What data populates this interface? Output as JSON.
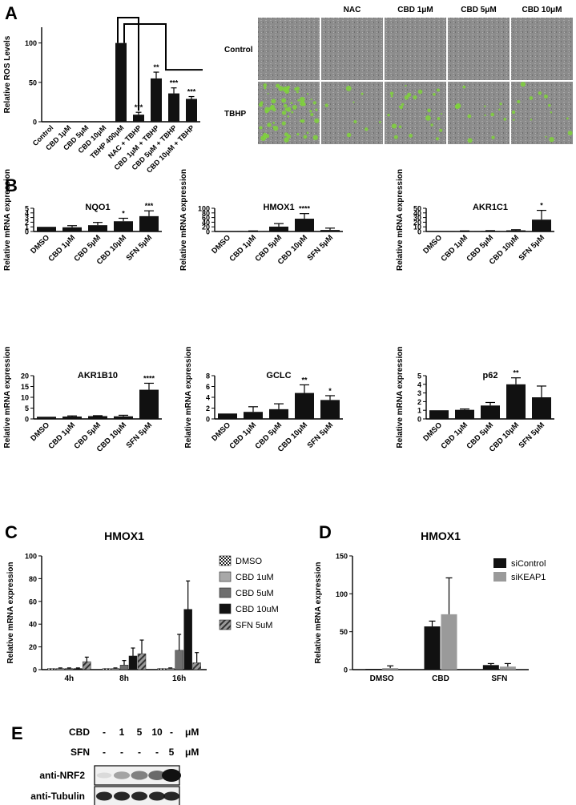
{
  "panels": {
    "a": "A",
    "b": "B",
    "c": "C",
    "d": "D",
    "e": "E"
  },
  "chart_data": [
    {
      "id": "a",
      "type": "bar",
      "ylabel": "Relative ROS Levels",
      "ylim": [
        0,
        120
      ],
      "yticks": [
        0,
        50,
        100
      ],
      "categories": [
        "Control",
        "CBD 1μM",
        "CBD 5μM",
        "CBD 10μM",
        "TBHP 400μM",
        "NAC + TBHP",
        "CBD 1μM + TBHP",
        "CBD 5μM + TBHP",
        "CBD 10μM + TBHP"
      ],
      "values": [
        0,
        0,
        0,
        0,
        100,
        9,
        55,
        36,
        29
      ],
      "errors": [
        0,
        0,
        0,
        0,
        0,
        3,
        8,
        7,
        3
      ],
      "stars": [
        "",
        "",
        "",
        "",
        "",
        "***",
        "**",
        "***",
        "***"
      ]
    },
    {
      "id": "b1",
      "type": "bar",
      "title": "NQO1",
      "ylabel": "Relative mRNA expression",
      "ylim": [
        0,
        5
      ],
      "yticks": [
        0,
        1,
        2,
        3,
        4,
        5
      ],
      "categories": [
        "DMSO",
        "CBD 1μM",
        "CBD 5μM",
        "CBD 10μM",
        "SFN 5μM"
      ],
      "values": [
        1,
        0.9,
        1.35,
        2.2,
        3.3
      ],
      "errors": [
        0,
        0.35,
        0.6,
        0.65,
        1.15
      ],
      "stars": [
        "",
        "",
        "",
        "*",
        "***"
      ]
    },
    {
      "id": "b2",
      "type": "bar",
      "title": "HMOX1",
      "ylabel": "Relative mRNA expression",
      "ylim": [
        0,
        100
      ],
      "yticks": [
        0,
        20,
        40,
        60,
        80,
        100
      ],
      "categories": [
        "DMSO",
        "CBD 1μM",
        "CBD 5μM",
        "CBD 10μM",
        "SFN 5μM"
      ],
      "values": [
        1,
        1.5,
        21,
        55,
        6.5
      ],
      "errors": [
        0,
        1,
        13,
        22,
        8
      ],
      "stars": [
        "",
        "",
        "",
        "****",
        ""
      ]
    },
    {
      "id": "b3",
      "type": "bar",
      "title": "AKR1C1",
      "ylabel": "Relative mRNA expression",
      "ylim": [
        0,
        50
      ],
      "yticks": [
        0,
        10,
        20,
        30,
        40,
        50
      ],
      "categories": [
        "DMSO",
        "CBD 1μM",
        "CBD 5μM",
        "CBD 10μM",
        "SFN 5μM"
      ],
      "values": [
        1,
        0.9,
        1.2,
        2.5,
        25.5
      ],
      "errors": [
        0,
        0.4,
        0.6,
        1.3,
        20
      ],
      "stars": [
        "",
        "",
        "",
        "",
        "*"
      ]
    },
    {
      "id": "b4",
      "type": "bar",
      "title": "AKR1B10",
      "ylabel": "Relative mRNA expression",
      "ylim": [
        0,
        20
      ],
      "yticks": [
        0,
        5,
        10,
        15,
        20
      ],
      "categories": [
        "DMSO",
        "CBD 1μM",
        "CBD 5μM",
        "CBD 10μM",
        "SFN 5μM"
      ],
      "values": [
        1,
        1.1,
        1.3,
        1.2,
        13.5
      ],
      "errors": [
        0,
        0.3,
        0.2,
        0.5,
        3
      ],
      "stars": [
        "",
        "",
        "",
        "",
        "****"
      ]
    },
    {
      "id": "b5",
      "type": "bar",
      "title": "GCLC",
      "ylabel": "Relative mRNA expression",
      "ylim": [
        0,
        8
      ],
      "yticks": [
        0,
        2,
        4,
        6,
        8
      ],
      "categories": [
        "DMSO",
        "CBD 1μM",
        "CBD 5μM",
        "CBD 10μM",
        "SFN 5μM"
      ],
      "values": [
        1,
        1.3,
        1.8,
        4.8,
        3.5
      ],
      "errors": [
        0,
        0.95,
        1,
        1.5,
        0.8
      ],
      "stars": [
        "",
        "",
        "",
        "**",
        "*"
      ]
    },
    {
      "id": "b6",
      "type": "bar",
      "title": "p62",
      "ylabel": "Relative mRNA expression",
      "ylim": [
        0,
        5
      ],
      "yticks": [
        0,
        1,
        2,
        3,
        4,
        5
      ],
      "categories": [
        "DMSO",
        "CBD 1μM",
        "CBD 5μM",
        "CBD 10μM",
        "SFN 5μM"
      ],
      "values": [
        1,
        1.05,
        1.55,
        4,
        2.5
      ],
      "errors": [
        0,
        0.1,
        0.35,
        0.75,
        1.3
      ],
      "stars": [
        "",
        "",
        "",
        "**",
        ""
      ]
    },
    {
      "id": "c",
      "type": "bar",
      "title": "HMOX1",
      "ylabel": "Relative mRNA expression",
      "ylim": [
        0,
        100
      ],
      "yticks": [
        0,
        20,
        40,
        60,
        80,
        100
      ],
      "categories": [
        "4h",
        "8h",
        "16h"
      ],
      "series": [
        {
          "name": "DMSO",
          "values": [
            1,
            1,
            1
          ],
          "errors": [
            0,
            0,
            0
          ]
        },
        {
          "name": "CBD 1uM",
          "values": [
            1,
            1,
            1
          ],
          "errors": [
            0.5,
            0.5,
            0.5
          ]
        },
        {
          "name": "CBD 5uM",
          "values": [
            1,
            4,
            17
          ],
          "errors": [
            0.5,
            4,
            14
          ]
        },
        {
          "name": "CBD 10uM",
          "values": [
            1,
            12,
            53
          ],
          "errors": [
            0.5,
            7,
            25
          ]
        },
        {
          "name": "SFN 5uM",
          "values": [
            7,
            14,
            6
          ],
          "errors": [
            4,
            12,
            9
          ]
        }
      ],
      "legend": "right"
    },
    {
      "id": "d",
      "type": "bar",
      "title": "HMOX1",
      "ylabel": "Relative mRNA expression",
      "ylim": [
        0,
        150
      ],
      "yticks": [
        0,
        50,
        100,
        150
      ],
      "categories": [
        "DMSO",
        "CBD",
        "SFN"
      ],
      "series": [
        {
          "name": "siControl",
          "values": [
            1,
            57,
            6
          ],
          "errors": [
            0,
            7,
            2
          ]
        },
        {
          "name": "siKEAP1",
          "values": [
            2,
            73,
            4
          ],
          "errors": [
            3,
            48,
            4
          ]
        }
      ],
      "legend": "top-right"
    }
  ],
  "micrograph": {
    "columns": [
      "NAC",
      "CBD 1μM",
      "CBD 5μM",
      "CBD 10μM"
    ],
    "rows": [
      "Control",
      "TBHP"
    ]
  },
  "blot": {
    "cbd_label": "CBD",
    "cbd_values": [
      "-",
      "1",
      "5",
      "10",
      "-"
    ],
    "cbd_unit": "μM",
    "sfn_label": "SFN",
    "sfn_values": [
      "-",
      "-",
      "-",
      "-",
      "5"
    ],
    "sfn_unit": "μM",
    "bands": [
      "anti-NRF2",
      "anti-Tubulin"
    ],
    "nrf2_intensity": [
      0.1,
      0.35,
      0.5,
      0.6,
      1.0
    ],
    "tubulin_intensity": [
      0.9,
      0.9,
      0.9,
      0.9,
      0.9
    ]
  },
  "colors": {
    "black": "#111111",
    "grey": "#9a9a9a",
    "green": "#7fd43a",
    "dark_grey": "#6a6a6a",
    "field": "#8a8a8a"
  }
}
